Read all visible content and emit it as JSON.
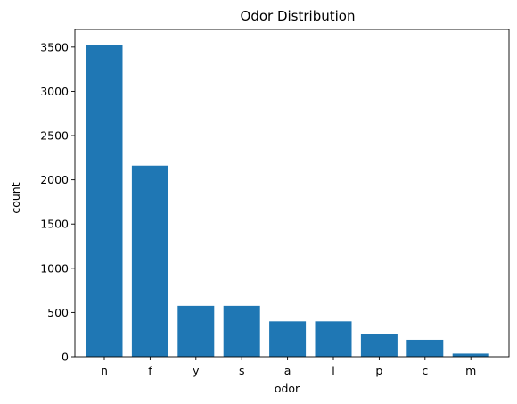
{
  "chart_data": {
    "type": "bar",
    "title": "Odor Distribution",
    "xlabel": "odor",
    "ylabel": "count",
    "categories": [
      "n",
      "f",
      "y",
      "s",
      "a",
      "l",
      "p",
      "c",
      "m"
    ],
    "values": [
      3528,
      2160,
      576,
      576,
      400,
      400,
      256,
      192,
      36
    ],
    "ylim": [
      0,
      3700
    ],
    "yticks": [
      0,
      500,
      1000,
      1500,
      2000,
      2500,
      3000,
      3500
    ],
    "grid": false,
    "legend": "none",
    "bar_color": "#1f77b4"
  }
}
